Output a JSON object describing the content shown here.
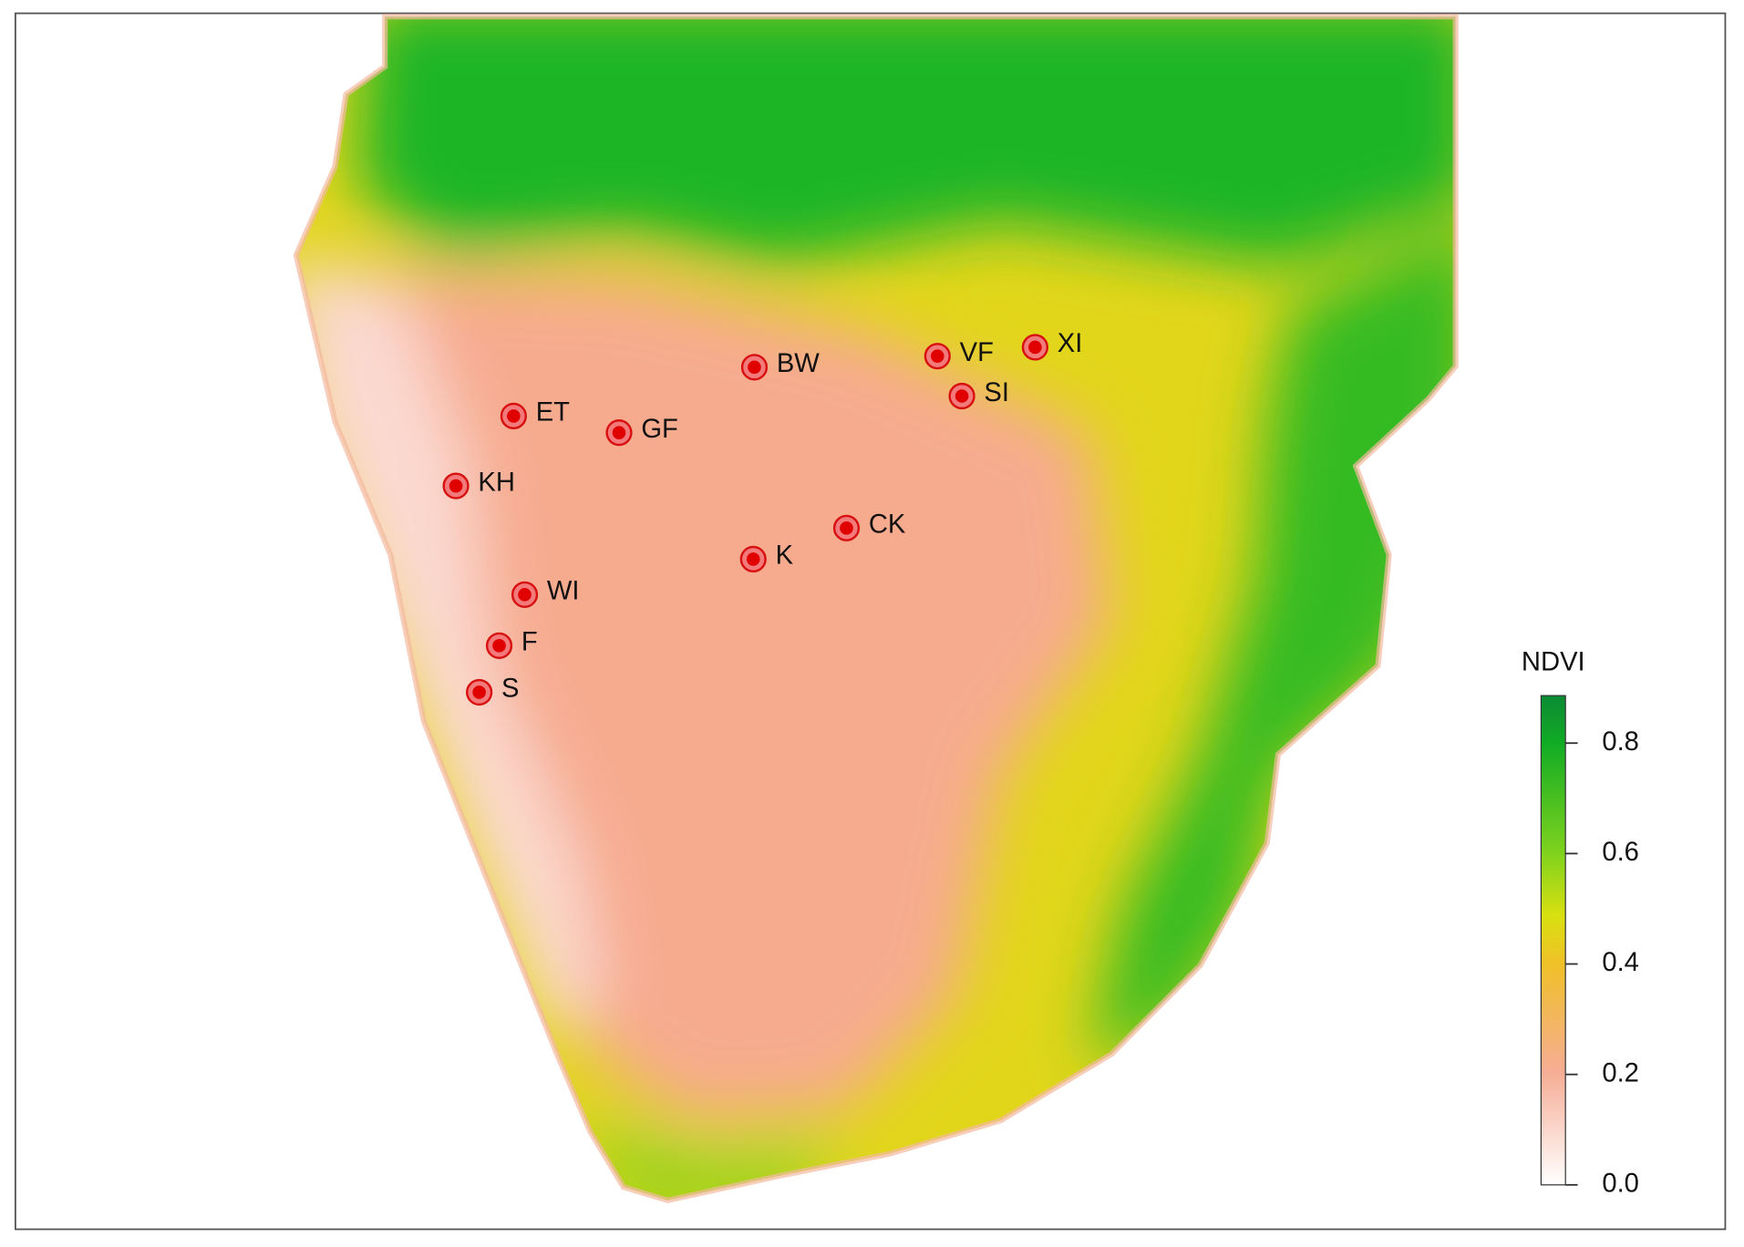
{
  "legend": {
    "title": "NDVI",
    "lim": [
      0,
      0.886
    ],
    "ticks": [
      {
        "value": 0,
        "label": "0.0"
      },
      0.2,
      0.4,
      0.6,
      0.8
    ]
  },
  "sites": [
    "ET",
    "GF",
    "KH",
    "WI",
    "F",
    "S",
    "BW",
    "VF",
    "SI",
    "XI",
    "CK",
    "K"
  ]
}
